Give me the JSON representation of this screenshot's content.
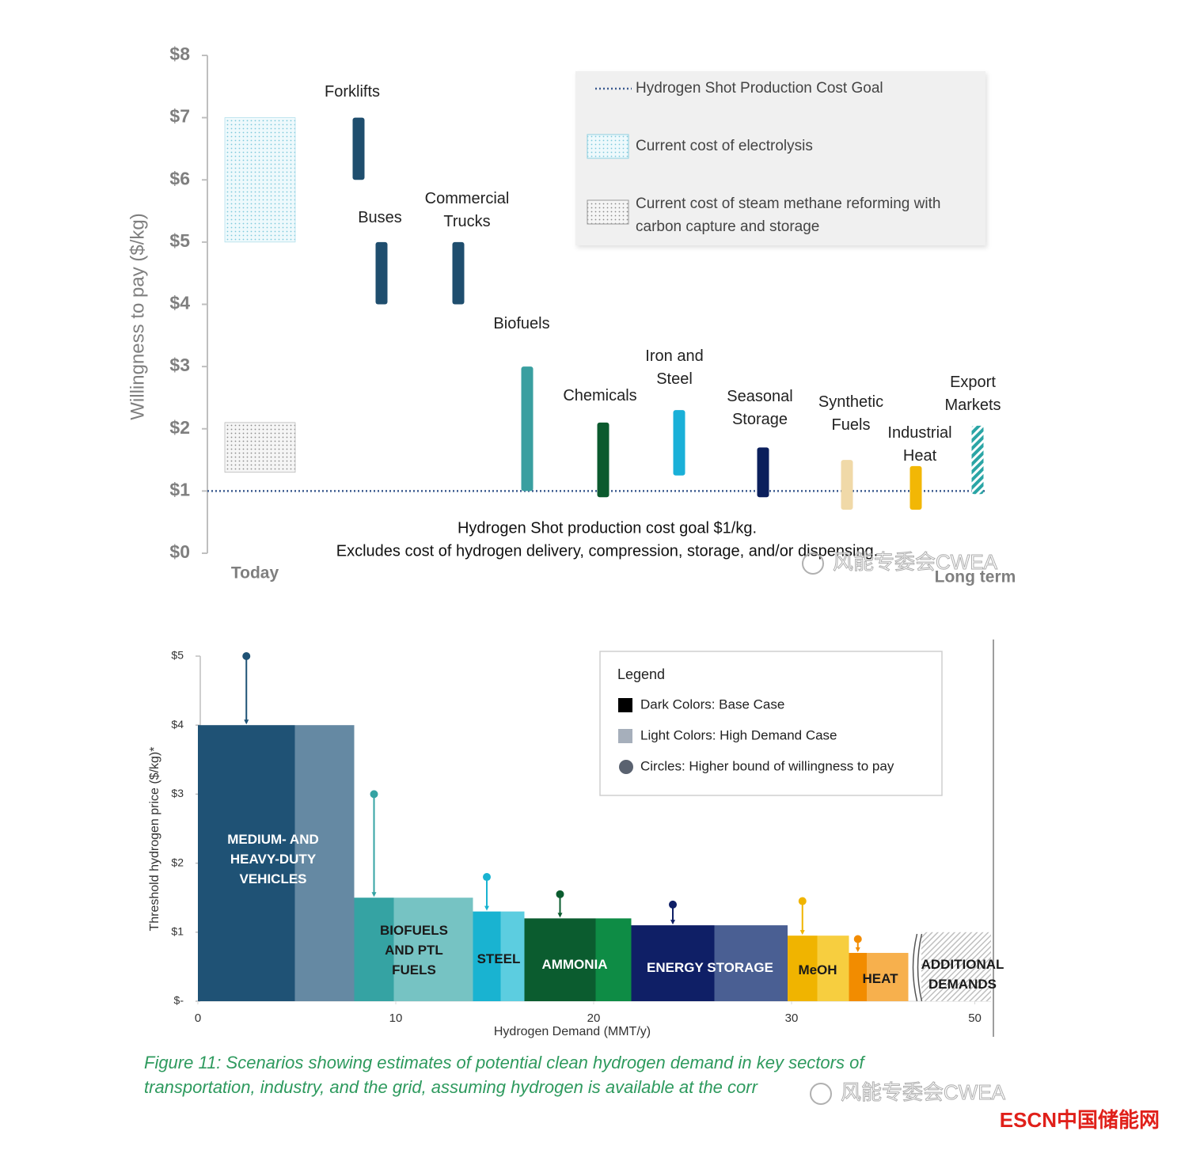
{
  "chart_data": [
    {
      "type": "range_bar",
      "y_label": "Willingness to pay ($/kg)",
      "ylim": [
        0,
        8
      ],
      "yticks": [
        {
          "value": 0,
          "label": "$0"
        },
        {
          "value": 1,
          "label": "$1"
        },
        {
          "value": 2,
          "label": "$2"
        },
        {
          "value": 3,
          "label": "$3"
        },
        {
          "value": 4,
          "label": "$4"
        },
        {
          "value": 5,
          "label": "$5"
        },
        {
          "value": 6,
          "label": "$6"
        },
        {
          "value": 7,
          "label": "$7"
        },
        {
          "value": 8,
          "label": "$8"
        }
      ],
      "categories": [
        "Forklifts",
        "Buses",
        "Commercial Trucks",
        "Biofuels",
        "Chemicals",
        "Iron and Steel",
        "Seasonal Storage",
        "Synthetic Fuels",
        "Industrial Heat",
        "Export Markets"
      ],
      "ranges": [
        [
          6,
          7
        ],
        [
          4,
          5
        ],
        [
          4,
          5
        ],
        [
          1,
          3
        ],
        [
          0.9,
          2.1
        ],
        [
          1.25,
          2.3
        ],
        [
          0.9,
          1.7
        ],
        [
          0.7,
          1.5
        ],
        [
          0.7,
          1.4
        ],
        [
          0.95,
          2.05
        ]
      ],
      "colors": [
        "#1f4e6e",
        "#1f4e6e",
        "#1f4e6e",
        "#3a9fa0",
        "#0b5a2e",
        "#1ab0d8",
        "#0b1f5c",
        "#f0d9a8",
        "#f2b705",
        "#2aa5a5"
      ],
      "hatched": [
        false,
        false,
        false,
        false,
        false,
        false,
        false,
        false,
        false,
        true
      ],
      "x_start_label": "Today",
      "x_end_label": "Long term",
      "reference_line": {
        "name": "Hydrogen Shot Production Cost Goal",
        "value": 1,
        "color": "#3b5a8f"
      },
      "cost_bands": [
        {
          "name": "Current cost of electrolysis",
          "range": [
            5,
            7
          ],
          "color": "#9fd8e6"
        },
        {
          "name": "Current cost of steam methane reforming with carbon capture and storage",
          "range": [
            1.3,
            2.1
          ],
          "color": "#a6a6a6"
        }
      ],
      "annotation": [
        "Hydrogen Shot production cost goal $1/kg.",
        "Excludes cost of hydrogen delivery, compression, storage, and/or dispensing."
      ]
    },
    {
      "type": "variable_width_bar",
      "y_label": "Threshold hydrogen price ($/kg)*",
      "x_label": "Hydrogen Demand (MMT/y)",
      "ylim": [
        0,
        5
      ],
      "yticks": [
        {
          "value": 0,
          "label": "$-"
        },
        {
          "value": 1,
          "label": "$1"
        },
        {
          "value": 2,
          "label": "$2"
        },
        {
          "value": 3,
          "label": "$3"
        },
        {
          "value": 4,
          "label": "$4"
        },
        {
          "value": 5,
          "label": "$5"
        }
      ],
      "xlim": [
        0,
        54
      ],
      "xbreak": 36.5,
      "xticks": [
        0,
        10,
        20,
        30,
        50
      ],
      "legend_title": "Legend",
      "legend": [
        "Dark Colors: Base Case",
        "Light Colors: High Demand Case",
        "Circles: Higher bound of willingness to pay"
      ],
      "sectors": [
        {
          "name": "MEDIUM- AND HEAVY-DUTY VEHICLES",
          "x_edges": [
            0,
            4.9,
            7.9
          ],
          "value": 4,
          "upper_bound": 5,
          "colors": [
            "#1f5275",
            "#6589a3"
          ]
        },
        {
          "name": "BIOFUELS AND PTL FUELS",
          "x_edges": [
            7.9,
            9.9,
            13.9
          ],
          "value": 1.5,
          "upper_bound": 3,
          "colors": [
            "#35a3a3",
            "#76c3c3"
          ]
        },
        {
          "name": "STEEL",
          "x_edges": [
            13.9,
            15.3,
            16.5
          ],
          "value": 1.3,
          "upper_bound": 1.8,
          "colors": [
            "#19b3d1",
            "#5ccde0"
          ]
        },
        {
          "name": "AMMONIA",
          "x_edges": [
            16.5,
            20.1,
            21.9
          ],
          "value": 1.2,
          "upper_bound": 1.55,
          "colors": [
            "#0b5c2f",
            "#0e8c45"
          ]
        },
        {
          "name": "ENERGY STORAGE",
          "x_edges": [
            21.9,
            26.1,
            29.8
          ],
          "value": 1.1,
          "upper_bound": 1.4,
          "colors": [
            "#0f1f66",
            "#4a5f93"
          ]
        },
        {
          "name": "MeOH",
          "x_edges": [
            29.8,
            31.3,
            32.9
          ],
          "value": 0.95,
          "upper_bound": 1.45,
          "colors": [
            "#f0b400",
            "#f7ce3f"
          ]
        },
        {
          "name": "HEAT",
          "x_edges": [
            32.9,
            33.8,
            35.9
          ],
          "value": 0.7,
          "upper_bound": 0.9,
          "colors": [
            "#f28c00",
            "#f7b04d"
          ]
        },
        {
          "name": "ADDITIONAL DEMANDS",
          "x_edges": [
            36.8,
            54
          ],
          "value": 1,
          "colors": [
            "#bfbfbf"
          ],
          "hatched": true
        }
      ]
    }
  ],
  "caption_lines": [
    "Figure 11: Scenarios showing estimates of potential clean hydrogen demand in key sectors of",
    "transportation, industry, and the grid, assuming hydrogen is available at the corr"
  ],
  "watermarks": [
    "风能专委会CWEA",
    "风能专委会CWEA"
  ],
  "logo": "ESCN中国储能网"
}
